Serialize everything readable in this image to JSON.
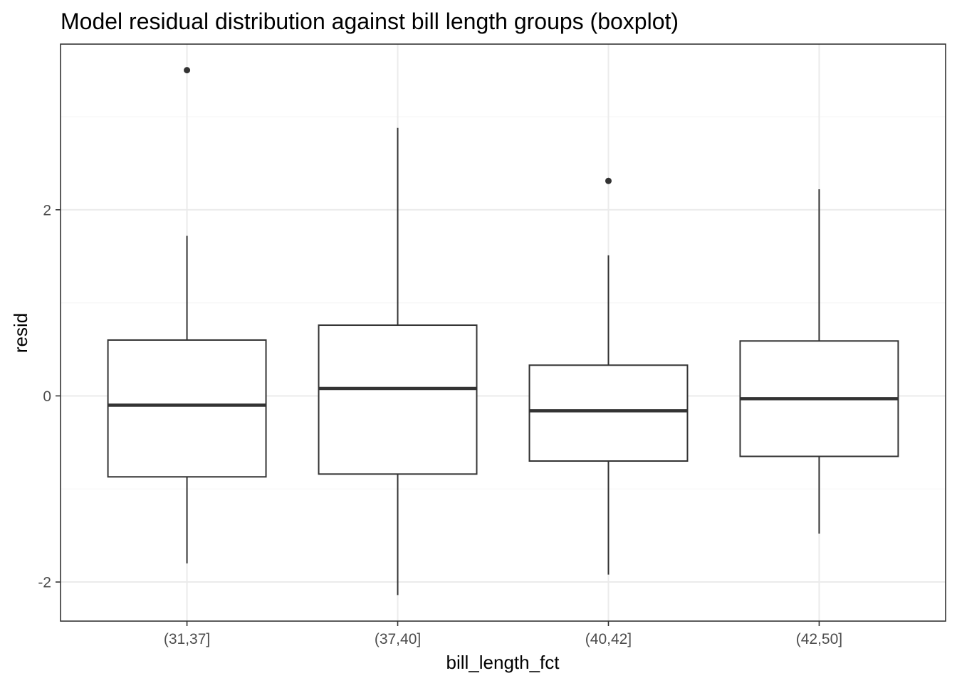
{
  "chart_data": {
    "type": "boxplot",
    "title": "Model residual distribution against bill length groups (boxplot)",
    "xlabel": "bill_length_fct",
    "ylabel": "resid",
    "ylim": [
      -2.42,
      3.78
    ],
    "yticks": [
      -2,
      0,
      2
    ],
    "ytick_labels": [
      "-2",
      "0",
      "2"
    ],
    "grid": true,
    "categories": [
      "(31,37]",
      "(37,40]",
      "(40,42]",
      "(42,50]"
    ],
    "boxes": [
      {
        "category": "(31,37]",
        "whisker_low": -1.8,
        "q1": -0.87,
        "median": -0.1,
        "q3": 0.6,
        "whisker_high": 1.72,
        "outliers": [
          3.5
        ]
      },
      {
        "category": "(37,40]",
        "whisker_low": -2.14,
        "q1": -0.84,
        "median": 0.08,
        "q3": 0.76,
        "whisker_high": 2.88,
        "outliers": []
      },
      {
        "category": "(40,42]",
        "whisker_low": -1.92,
        "q1": -0.7,
        "median": -0.16,
        "q3": 0.33,
        "whisker_high": 1.51,
        "outliers": [
          2.31
        ]
      },
      {
        "category": "(42,50]",
        "whisker_low": -1.48,
        "q1": -0.65,
        "median": -0.03,
        "q3": 0.59,
        "whisker_high": 2.22,
        "outliers": []
      }
    ],
    "colors": {
      "box_stroke": "#333333",
      "box_fill": "#ffffff",
      "grid_major": "#ebebeb",
      "grid_minor": "#f5f5f5",
      "panel_border": "#333333",
      "tick_text": "#4d4d4d"
    }
  }
}
